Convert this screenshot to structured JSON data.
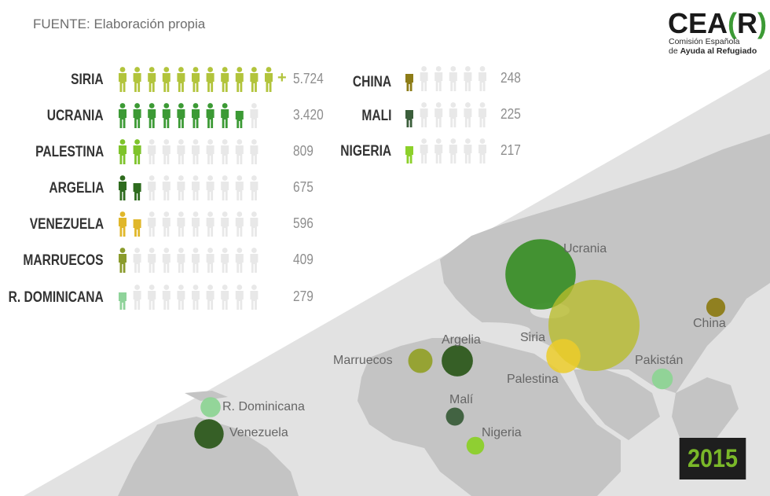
{
  "source_text": "FUENTE: Elaboración propia",
  "logo": {
    "wordmark_main": "CEA",
    "wordmark_open": "(",
    "wordmark_letter": "R",
    "wordmark_close": ")",
    "subtitle_line1": "Comisión Española",
    "subtitle_line2_pre": "de ",
    "subtitle_line2_bold": "Ayuda al Refugiado"
  },
  "year_badge": "2015",
  "colors": {
    "inactive_icon": "#e8e8e8",
    "map_background": "#e2e2e2",
    "map_land": "#c3c3c3",
    "badge_background": "#1e1e1e",
    "badge_text": "#7ab829"
  },
  "chart_data": {
    "type": "pictogram",
    "icons_per_row": 10,
    "series": [
      {
        "country": "SIRIA",
        "value_label": "5.724",
        "value": 5724,
        "filled_icons": 11,
        "color": "#b2c43c",
        "overflow_marker": "+"
      },
      {
        "country": "UCRANIA",
        "value_label": "3.420",
        "value": 3420,
        "filled_icons": 8,
        "partial_icons": 1,
        "color": "#3c9a35"
      },
      {
        "country": "PALESTINA",
        "value_label": "809",
        "value": 809,
        "filled_icons": 2,
        "color": "#7ec32b"
      },
      {
        "country": "ARGELIA",
        "value_label": "675",
        "value": 675,
        "filled_icons": 1,
        "partial_icons": 1,
        "color": "#2e6b1e"
      },
      {
        "country": "VENEZUELA",
        "value_label": "596",
        "value": 596,
        "filled_icons": 1,
        "partial_icons": 1,
        "color": "#e0b72a"
      },
      {
        "country": "MARRUECOS",
        "value_label": "409",
        "value": 409,
        "filled_icons": 1,
        "color": "#8a9b2c"
      },
      {
        "country": "R. DOMINICANA",
        "value_label": "279",
        "value": 279,
        "filled_icons": 0,
        "partial_icons": 1,
        "color": "#8fd39a"
      },
      {
        "country": "CHINA",
        "value_label": "248",
        "value": 248,
        "filled_icons": 0,
        "partial_icons": 1,
        "color": "#8d7c17"
      },
      {
        "country": "MALI",
        "value_label": "225",
        "value": 225,
        "filled_icons": 0,
        "partial_icons": 1,
        "color": "#3b5e3b"
      },
      {
        "country": "NIGERIA",
        "value_label": "217",
        "value": 217,
        "filled_icons": 0,
        "partial_icons": 1,
        "color": "#8cd02a"
      }
    ]
  },
  "map": {
    "bubbles": [
      {
        "label": "Ucrania",
        "value": 3420,
        "color": "#3c8f2a"
      },
      {
        "label": "Siria",
        "value": 5724,
        "color": "#b8bd2a"
      },
      {
        "label": "Palestina",
        "value": 809,
        "color": "#eccd2a"
      },
      {
        "label": "China",
        "value": 248,
        "color": "#8d7c17"
      },
      {
        "label": "Pakistán",
        "value": null,
        "color": "#8ed495"
      },
      {
        "label": "Argelia",
        "value": 675,
        "color": "#2e5a1e"
      },
      {
        "label": "Marruecos",
        "value": 409,
        "color": "#93a12c"
      },
      {
        "label": "Malí",
        "value": 225,
        "color": "#3b5e3b"
      },
      {
        "label": "Nigeria",
        "value": 217,
        "color": "#8cd02a"
      },
      {
        "label": "R. Dominicana",
        "value": 279,
        "color": "#8ed495"
      },
      {
        "label": "Venezuela",
        "value": 596,
        "color": "#2e5a1e"
      }
    ]
  }
}
